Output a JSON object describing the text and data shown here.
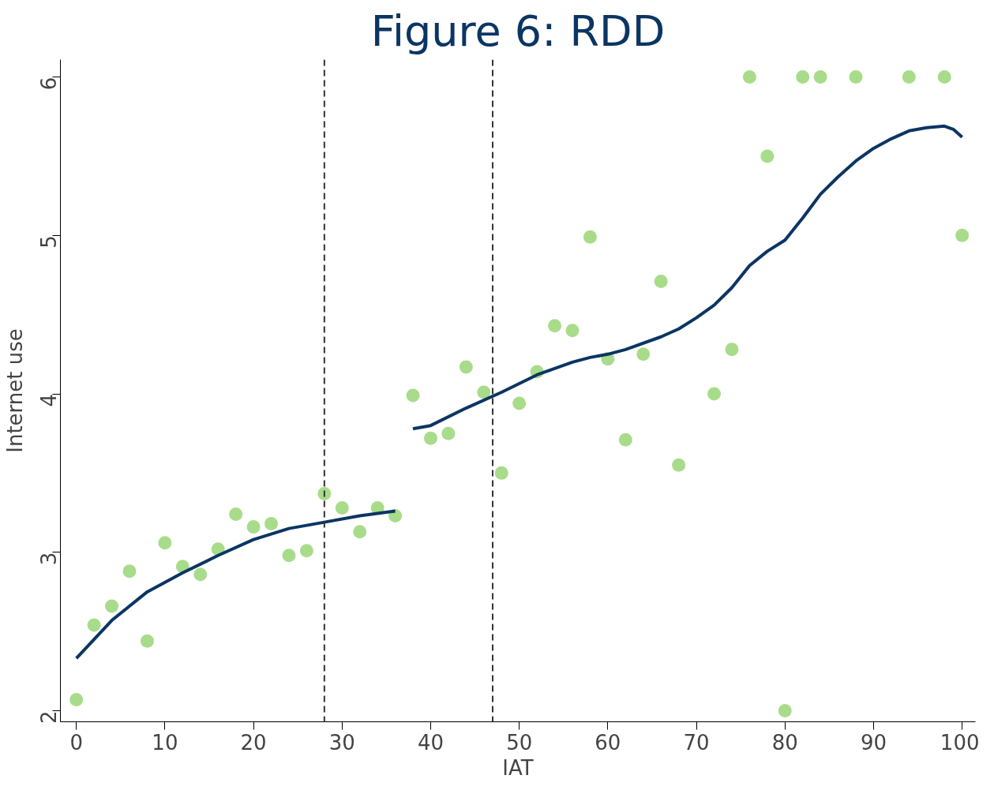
{
  "chart_data": {
    "type": "scatter",
    "title": "Figure 6: RDD",
    "xlabel": "IAT",
    "ylabel": "Internet use",
    "xlim": [
      -1.8,
      101.5
    ],
    "ylim": [
      1.93,
      6.11
    ],
    "xticks": [
      0,
      10,
      20,
      30,
      40,
      50,
      60,
      70,
      80,
      90,
      100
    ],
    "yticks": [
      2,
      3,
      4,
      5,
      6
    ],
    "grid": false,
    "series": [
      {
        "color": "#a8dc8a",
        "marker": "circle",
        "x": [
          0,
          2,
          4,
          6,
          8,
          10,
          12,
          14,
          16,
          18,
          20,
          22,
          24,
          26,
          28,
          30,
          32,
          34,
          36,
          38,
          40,
          42,
          44,
          46,
          48,
          50,
          52,
          54,
          56,
          58,
          60,
          62,
          64,
          66,
          68,
          72,
          74,
          76,
          78,
          80,
          82,
          84,
          88,
          94,
          98,
          100
        ],
        "values": [
          2.07,
          2.54,
          2.66,
          2.88,
          2.44,
          3.06,
          2.91,
          2.86,
          3.02,
          3.24,
          3.16,
          3.18,
          2.98,
          3.01,
          3.37,
          3.28,
          3.13,
          3.28,
          3.23,
          3.99,
          3.72,
          3.75,
          4.17,
          4.01,
          3.5,
          3.94,
          4.14,
          4.43,
          4.4,
          4.99,
          4.22,
          3.71,
          4.25,
          4.71,
          3.55,
          4.0,
          4.28,
          6,
          5.5,
          2,
          6,
          6,
          6,
          6,
          6,
          5.0
        ]
      },
      {
        "type": "line",
        "color": "#0b3563",
        "line_style": "solid",
        "marker": "none",
        "x": [
          0,
          4,
          8,
          12,
          16,
          20,
          24,
          28,
          32,
          36
        ],
        "values": [
          2.33,
          2.57,
          2.75,
          2.87,
          2.98,
          3.08,
          3.15,
          3.19,
          3.23,
          3.26
        ]
      },
      {
        "type": "line",
        "color": "#0b3563",
        "line_style": "solid",
        "marker": "none",
        "x": [
          38,
          40,
          44,
          48,
          52,
          56,
          58,
          60,
          62,
          66,
          68,
          70,
          72,
          74,
          76,
          78,
          80,
          82,
          84,
          86,
          88,
          90,
          92,
          94,
          96,
          98,
          99,
          100
        ],
        "values": [
          3.78,
          3.8,
          3.91,
          4.01,
          4.12,
          4.2,
          4.23,
          4.25,
          4.28,
          4.36,
          4.41,
          4.48,
          4.56,
          4.67,
          4.81,
          4.9,
          4.97,
          5.11,
          5.26,
          5.37,
          5.47,
          5.55,
          5.61,
          5.66,
          5.68,
          5.69,
          5.67,
          5.62
        ]
      }
    ],
    "ref_lines": [
      {
        "axis": "x",
        "value": 28,
        "color": "#333333",
        "line_style": "dashed"
      },
      {
        "axis": "x",
        "value": 47,
        "color": "#333333",
        "line_style": "dashed"
      }
    ]
  }
}
